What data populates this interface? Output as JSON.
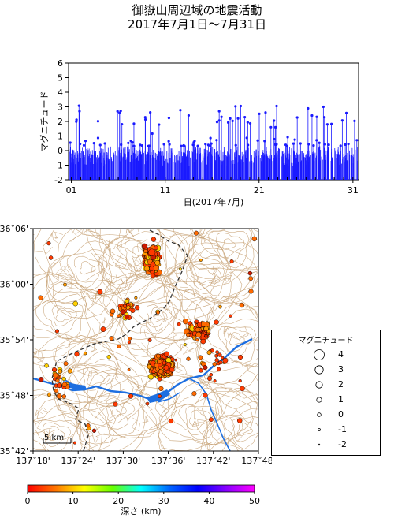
{
  "title": {
    "line1": "御嶽山周辺域の地震活動",
    "line2": "2017年7月1日～7月31日"
  },
  "time_chart": {
    "ylabel": "マグニチュード",
    "xlabel": "日(2017年7月)",
    "yticks": [
      "-2",
      "-1",
      "0",
      "1",
      "2",
      "3",
      "4",
      "5",
      "6"
    ],
    "ymin": -2,
    "ymax": 6,
    "xticks": [
      "01",
      "11",
      "21",
      "31"
    ],
    "tick_days": [
      1,
      11,
      21,
      31
    ],
    "day_range": [
      0.7,
      31.6
    ],
    "color": "#1a1aff"
  },
  "map": {
    "lat_labels": [
      "36˚06'",
      "36˚00'",
      "35˚54'",
      "35˚48'",
      "35˚42'"
    ],
    "lon_labels": [
      "137˚18'",
      "137˚24'",
      "137˚30'",
      "137˚36'",
      "137˚42'",
      "137˚48'"
    ],
    "lat_values": [
      36.1,
      36.0,
      35.9,
      35.8,
      35.7
    ],
    "lon_values": [
      137.3,
      137.4,
      137.5,
      137.6,
      137.7,
      137.8
    ],
    "scale_label": "5 km",
    "contour_color": "#c9a57a",
    "river_color": "#1e6fe0",
    "border_color": "#333333"
  },
  "legend": {
    "title": "マグニチュード",
    "items": [
      "4",
      "3",
      "2",
      "1",
      "0",
      "-1",
      "-2"
    ]
  },
  "colorbar": {
    "label": "深さ (km)",
    "ticks": [
      "0",
      "10",
      "20",
      "30",
      "40",
      "50"
    ],
    "colors": [
      "#ff0000",
      "#ff7700",
      "#ffff00",
      "#66ff00",
      "#00ffff",
      "#0066ff",
      "#0000ff",
      "#8800ff",
      "#ff00ff"
    ]
  }
}
